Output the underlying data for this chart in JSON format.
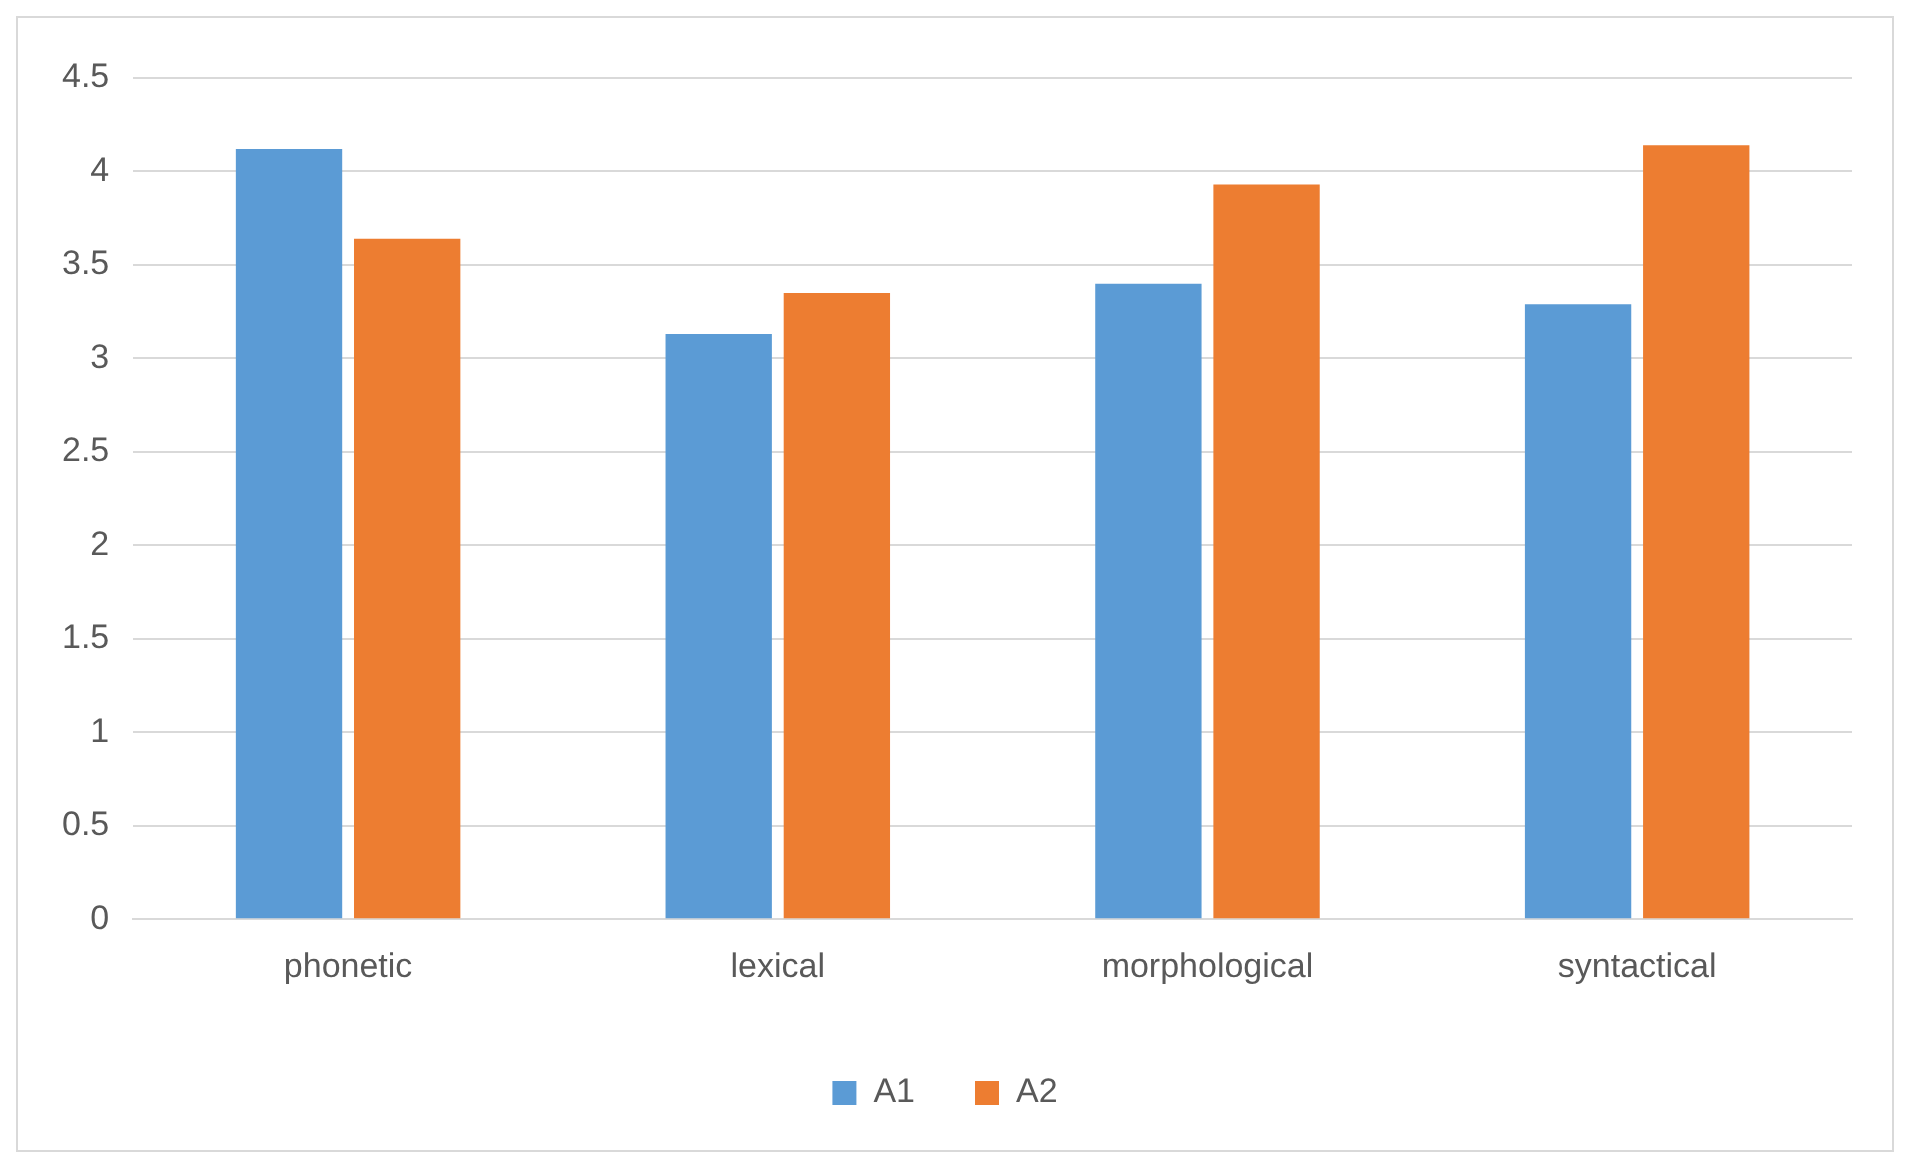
{
  "chart_data": {
    "type": "bar",
    "categories": [
      "phonetic",
      "lexical",
      "morphological",
      "syntactical"
    ],
    "series": [
      {
        "name": "A1",
        "color": "#5b9bd5",
        "values": [
          4.12,
          3.13,
          3.4,
          3.29
        ]
      },
      {
        "name": "A2",
        "color": "#ed7d31",
        "values": [
          3.64,
          3.35,
          3.93,
          4.14
        ]
      }
    ],
    "ylim": [
      0,
      4.5
    ],
    "yticks": [
      0,
      0.5,
      1,
      1.5,
      2,
      2.5,
      3,
      3.5,
      4,
      4.5
    ],
    "grid": "y",
    "legend": "bottom"
  }
}
